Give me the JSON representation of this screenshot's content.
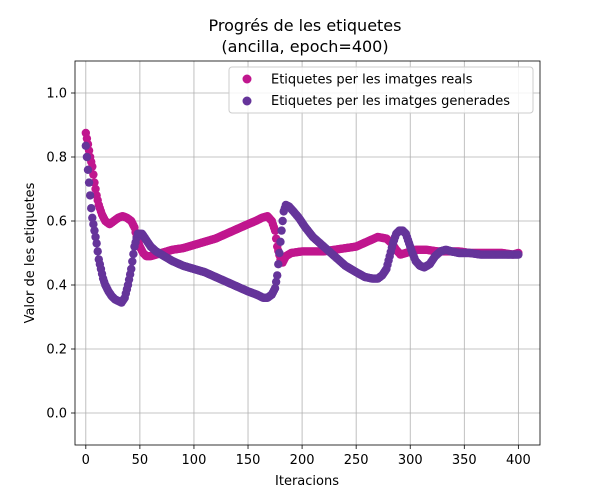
{
  "chart_data": {
    "type": "scatter",
    "title_line1": "Progrés de les etiquetes",
    "title_line2": "(ancilla, epoch=400)",
    "xlabel": "Iteracions",
    "ylabel": "Valor de les etiquetes",
    "xlim": [
      -10,
      420
    ],
    "ylim": [
      -0.1,
      1.1
    ],
    "x_ticks": [
      0,
      50,
      100,
      150,
      200,
      250,
      300,
      350,
      400
    ],
    "y_ticks": [
      0.0,
      0.2,
      0.4,
      0.6,
      0.8,
      1.0
    ],
    "x_tick_labels": [
      "0",
      "50",
      "100",
      "150",
      "200",
      "250",
      "300",
      "350",
      "400"
    ],
    "y_tick_labels": [
      "0.0",
      "0.2",
      "0.4",
      "0.6",
      "0.8",
      "1.0"
    ],
    "grid": true,
    "legend_position": "upper right",
    "series": [
      {
        "name": "Etiquetes per les imatges reals",
        "color": "#c0168e",
        "points": [
          [
            0,
            0.875
          ],
          [
            2,
            0.84
          ],
          [
            4,
            0.8
          ],
          [
            6,
            0.77
          ],
          [
            8,
            0.72
          ],
          [
            10,
            0.68
          ],
          [
            12,
            0.65
          ],
          [
            15,
            0.62
          ],
          [
            18,
            0.6
          ],
          [
            22,
            0.59
          ],
          [
            26,
            0.6
          ],
          [
            30,
            0.61
          ],
          [
            34,
            0.615
          ],
          [
            38,
            0.61
          ],
          [
            42,
            0.6
          ],
          [
            45,
            0.58
          ],
          [
            47,
            0.55
          ],
          [
            50,
            0.52
          ],
          [
            53,
            0.5
          ],
          [
            56,
            0.49
          ],
          [
            60,
            0.49
          ],
          [
            65,
            0.495
          ],
          [
            70,
            0.5
          ],
          [
            75,
            0.505
          ],
          [
            80,
            0.51
          ],
          [
            90,
            0.515
          ],
          [
            100,
            0.525
          ],
          [
            110,
            0.535
          ],
          [
            120,
            0.545
          ],
          [
            130,
            0.56
          ],
          [
            140,
            0.575
          ],
          [
            150,
            0.59
          ],
          [
            157,
            0.6
          ],
          [
            163,
            0.61
          ],
          [
            168,
            0.615
          ],
          [
            172,
            0.6
          ],
          [
            175,
            0.57
          ],
          [
            177,
            0.52
          ],
          [
            180,
            0.48
          ],
          [
            182,
            0.47
          ],
          [
            185,
            0.49
          ],
          [
            190,
            0.5
          ],
          [
            200,
            0.505
          ],
          [
            210,
            0.505
          ],
          [
            220,
            0.505
          ],
          [
            230,
            0.51
          ],
          [
            240,
            0.515
          ],
          [
            250,
            0.52
          ],
          [
            260,
            0.535
          ],
          [
            270,
            0.55
          ],
          [
            278,
            0.545
          ],
          [
            283,
            0.53
          ],
          [
            287,
            0.51
          ],
          [
            291,
            0.495
          ],
          [
            296,
            0.5
          ],
          [
            305,
            0.51
          ],
          [
            315,
            0.51
          ],
          [
            325,
            0.505
          ],
          [
            335,
            0.505
          ],
          [
            345,
            0.505
          ],
          [
            355,
            0.5
          ],
          [
            365,
            0.5
          ],
          [
            375,
            0.5
          ],
          [
            385,
            0.5
          ],
          [
            395,
            0.495
          ],
          [
            400,
            0.5
          ]
        ]
      },
      {
        "name": "Etiquetes per les imatges generades",
        "color": "#65349a",
        "points": [
          [
            0,
            0.835
          ],
          [
            1,
            0.8
          ],
          [
            2,
            0.76
          ],
          [
            3,
            0.72
          ],
          [
            4,
            0.68
          ],
          [
            5,
            0.64
          ],
          [
            6,
            0.61
          ],
          [
            8,
            0.57
          ],
          [
            10,
            0.53
          ],
          [
            12,
            0.48
          ],
          [
            14,
            0.45
          ],
          [
            16,
            0.42
          ],
          [
            18,
            0.4
          ],
          [
            21,
            0.38
          ],
          [
            24,
            0.365
          ],
          [
            27,
            0.355
          ],
          [
            30,
            0.35
          ],
          [
            33,
            0.345
          ],
          [
            36,
            0.36
          ],
          [
            39,
            0.4
          ],
          [
            42,
            0.45
          ],
          [
            45,
            0.52
          ],
          [
            48,
            0.56
          ],
          [
            52,
            0.56
          ],
          [
            56,
            0.54
          ],
          [
            60,
            0.52
          ],
          [
            65,
            0.505
          ],
          [
            70,
            0.495
          ],
          [
            75,
            0.485
          ],
          [
            80,
            0.475
          ],
          [
            90,
            0.46
          ],
          [
            100,
            0.45
          ],
          [
            110,
            0.44
          ],
          [
            120,
            0.425
          ],
          [
            130,
            0.41
          ],
          [
            140,
            0.395
          ],
          [
            150,
            0.38
          ],
          [
            158,
            0.37
          ],
          [
            164,
            0.36
          ],
          [
            168,
            0.36
          ],
          [
            172,
            0.37
          ],
          [
            175,
            0.39
          ],
          [
            177,
            0.43
          ],
          [
            179,
            0.5
          ],
          [
            181,
            0.57
          ],
          [
            183,
            0.63
          ],
          [
            185,
            0.65
          ],
          [
            188,
            0.645
          ],
          [
            192,
            0.63
          ],
          [
            197,
            0.61
          ],
          [
            203,
            0.58
          ],
          [
            210,
            0.55
          ],
          [
            220,
            0.52
          ],
          [
            230,
            0.49
          ],
          [
            240,
            0.46
          ],
          [
            250,
            0.44
          ],
          [
            258,
            0.425
          ],
          [
            265,
            0.42
          ],
          [
            270,
            0.42
          ],
          [
            274,
            0.43
          ],
          [
            278,
            0.45
          ],
          [
            281,
            0.49
          ],
          [
            284,
            0.53
          ],
          [
            287,
            0.56
          ],
          [
            290,
            0.57
          ],
          [
            293,
            0.57
          ],
          [
            296,
            0.56
          ],
          [
            299,
            0.53
          ],
          [
            302,
            0.5
          ],
          [
            305,
            0.475
          ],
          [
            309,
            0.46
          ],
          [
            313,
            0.455
          ],
          [
            318,
            0.465
          ],
          [
            323,
            0.49
          ],
          [
            328,
            0.505
          ],
          [
            333,
            0.51
          ],
          [
            338,
            0.505
          ],
          [
            345,
            0.5
          ],
          [
            355,
            0.5
          ],
          [
            365,
            0.495
          ],
          [
            375,
            0.495
          ],
          [
            385,
            0.495
          ],
          [
            392,
            0.495
          ],
          [
            400,
            0.495
          ]
        ]
      }
    ]
  }
}
